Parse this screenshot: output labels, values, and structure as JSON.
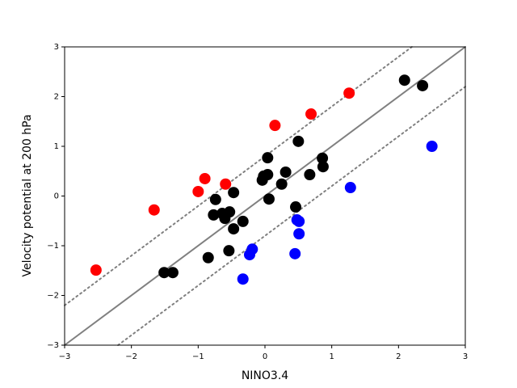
{
  "chart_data": {
    "type": "scatter",
    "xlabel": "NINO3.4",
    "ylabel": "Velocity potential at 200 hPa",
    "xlim": [
      -3,
      3
    ],
    "ylim": [
      -3,
      3
    ],
    "xticks": [
      {
        "value": -3,
        "label": "−3"
      },
      {
        "value": -2,
        "label": "−2"
      },
      {
        "value": -1,
        "label": "−1"
      },
      0,
      1,
      2,
      3
    ],
    "yticks": [
      {
        "value": -3,
        "label": "−3"
      },
      {
        "value": -2,
        "label": "−2"
      },
      {
        "value": -1,
        "label": "−1"
      },
      0,
      1,
      2,
      3
    ],
    "reference_lines": [
      {
        "x": [
          -3,
          3
        ],
        "y": [
          -3,
          3
        ],
        "style": "solid",
        "color": "#808080"
      },
      {
        "x": [
          -3,
          2.2
        ],
        "y": [
          -2.2,
          3
        ],
        "style": "dotted",
        "color": "#808080"
      },
      {
        "x": [
          -2.2,
          3
        ],
        "y": [
          -3,
          2.2
        ],
        "style": "dotted",
        "color": "#808080"
      }
    ],
    "series": [
      {
        "color": "#000000",
        "x": [
          -1.51,
          -1.38,
          -0.85,
          -0.54,
          -0.47,
          -0.33,
          -0.77,
          -0.74,
          -0.64,
          -0.6,
          -0.53,
          -0.47,
          -0.04,
          -0.02,
          0.04,
          0.04,
          0.06,
          0.25,
          0.31,
          0.46,
          0.5,
          0.67,
          0.86,
          0.87,
          2.09,
          2.36
        ],
        "values": [
          -1.54,
          -1.54,
          -1.24,
          -1.1,
          -0.66,
          -0.51,
          -0.38,
          -0.07,
          -0.35,
          -0.45,
          -0.32,
          0.07,
          0.32,
          0.4,
          0.43,
          0.77,
          -0.06,
          0.24,
          0.48,
          -0.22,
          1.1,
          0.43,
          0.76,
          0.59,
          2.33,
          2.22
        ]
      },
      {
        "color": "#ff0000",
        "x": [
          -2.53,
          -1.66,
          -1.0,
          -0.9,
          -0.59,
          0.15,
          0.69,
          1.26
        ],
        "values": [
          -1.49,
          -0.28,
          0.09,
          0.35,
          0.24,
          1.42,
          1.65,
          2.07
        ]
      },
      {
        "color": "#0000ff",
        "x": [
          -0.33,
          -0.23,
          -0.19,
          0.45,
          0.48,
          0.51,
          0.51,
          1.28,
          2.5
        ],
        "values": [
          -1.67,
          -1.18,
          -1.07,
          -1.16,
          -0.48,
          -0.51,
          -0.76,
          0.17,
          1.0
        ]
      }
    ]
  }
}
